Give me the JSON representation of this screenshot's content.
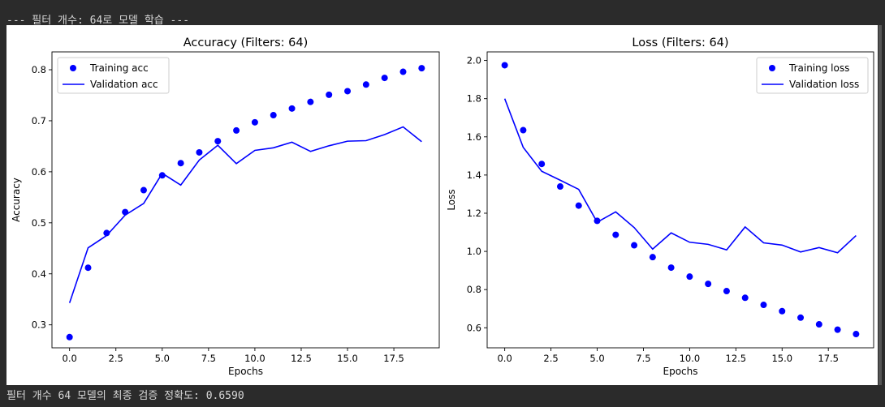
{
  "console": {
    "header_line": "--- 필터 개수: 64로 모델 학습 ---",
    "result_line": "필터 개수 64 모델의 최종 검증 정확도: 0.6590"
  },
  "colors": {
    "series": "#0000ff",
    "terminal_bg": "#2b2b2b",
    "terminal_text": "#d8d8d8"
  },
  "chart_data": [
    {
      "type": "line",
      "title": "Accuracy (Filters: 64)",
      "xlabel": "Epochs",
      "ylabel": "Accuracy",
      "xlim": [
        -0.95,
        19.95
      ],
      "ylim": [
        0.255,
        0.835
      ],
      "xticks": [
        0.0,
        2.5,
        5.0,
        7.5,
        10.0,
        12.5,
        15.0,
        17.5
      ],
      "xtick_labels": [
        "0.0",
        "2.5",
        "5.0",
        "7.5",
        "10.0",
        "12.5",
        "15.0",
        "17.5"
      ],
      "yticks": [
        0.3,
        0.4,
        0.5,
        0.6,
        0.7,
        0.8
      ],
      "ytick_labels": [
        "0.3",
        "0.4",
        "0.5",
        "0.6",
        "0.7",
        "0.8"
      ],
      "legend": "top-left",
      "grid": false,
      "x": [
        0,
        1,
        2,
        3,
        4,
        5,
        6,
        7,
        8,
        9,
        10,
        11,
        12,
        13,
        14,
        15,
        16,
        17,
        18,
        19
      ],
      "series": [
        {
          "name": "Training acc",
          "style": "points",
          "values": [
            0.276,
            0.412,
            0.48,
            0.521,
            0.564,
            0.593,
            0.617,
            0.638,
            0.66,
            0.681,
            0.697,
            0.711,
            0.724,
            0.737,
            0.751,
            0.758,
            0.771,
            0.784,
            0.796,
            0.803
          ]
        },
        {
          "name": "Validation acc",
          "style": "line",
          "values": [
            0.343,
            0.451,
            0.475,
            0.515,
            0.538,
            0.597,
            0.574,
            0.623,
            0.652,
            0.616,
            0.642,
            0.647,
            0.658,
            0.64,
            0.651,
            0.66,
            0.661,
            0.673,
            0.688,
            0.659
          ]
        }
      ]
    },
    {
      "type": "line",
      "title": "Loss (Filters: 64)",
      "xlabel": "Epochs",
      "ylabel": "Loss",
      "xlim": [
        -0.95,
        19.95
      ],
      "ylim": [
        0.495,
        2.045
      ],
      "xticks": [
        0.0,
        2.5,
        5.0,
        7.5,
        10.0,
        12.5,
        15.0,
        17.5
      ],
      "xtick_labels": [
        "0.0",
        "2.5",
        "5.0",
        "7.5",
        "10.0",
        "12.5",
        "15.0",
        "17.5"
      ],
      "yticks": [
        0.6,
        0.8,
        1.0,
        1.2,
        1.4,
        1.6,
        1.8,
        2.0
      ],
      "ytick_labels": [
        "0.6",
        "0.8",
        "1.0",
        "1.2",
        "1.4",
        "1.6",
        "1.8",
        "2.0"
      ],
      "legend": "top-right",
      "grid": false,
      "x": [
        0,
        1,
        2,
        3,
        4,
        5,
        6,
        7,
        8,
        9,
        10,
        11,
        12,
        13,
        14,
        15,
        16,
        17,
        18,
        19
      ],
      "series": [
        {
          "name": "Training loss",
          "style": "points",
          "values": [
            1.975,
            1.635,
            1.458,
            1.34,
            1.24,
            1.16,
            1.087,
            1.032,
            0.97,
            0.915,
            0.868,
            0.83,
            0.792,
            0.757,
            0.72,
            0.687,
            0.653,
            0.618,
            0.59,
            0.567
          ]
        },
        {
          "name": "Validation loss",
          "style": "line",
          "values": [
            1.8,
            1.545,
            1.42,
            1.373,
            1.325,
            1.153,
            1.207,
            1.125,
            1.012,
            1.097,
            1.048,
            1.037,
            1.008,
            1.128,
            1.045,
            1.033,
            0.997,
            1.02,
            0.993,
            1.083
          ]
        }
      ]
    }
  ]
}
